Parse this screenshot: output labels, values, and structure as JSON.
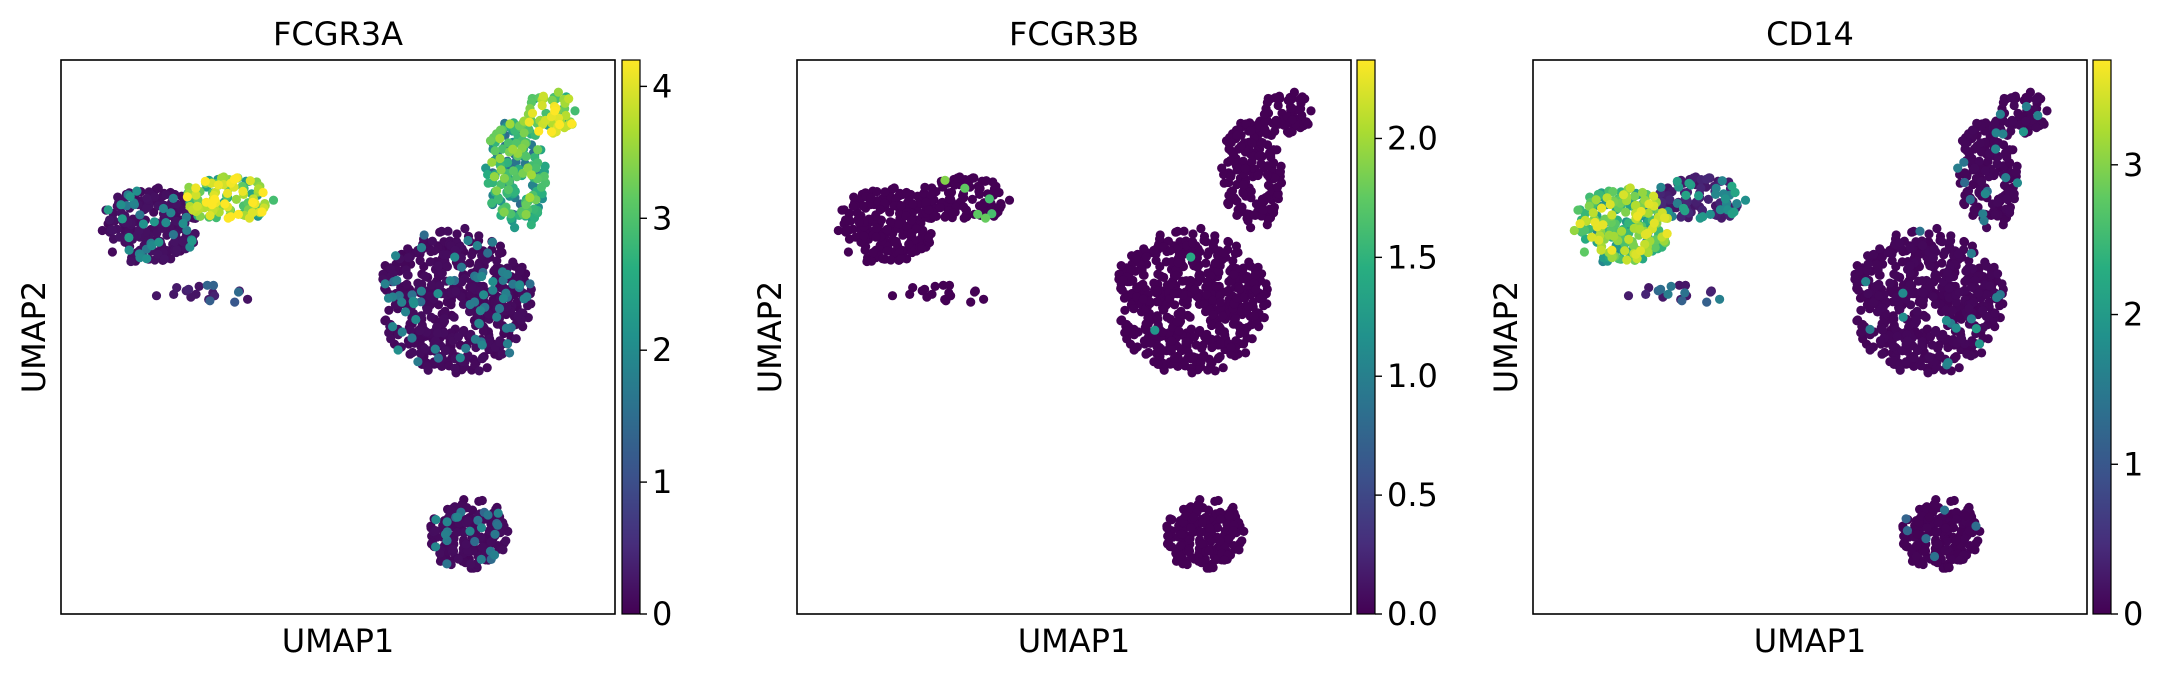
{
  "chart_data": [
    {
      "type": "scatter",
      "title": "FCGR3A",
      "xlabel": "UMAP1",
      "ylabel": "UMAP2",
      "colorbar": {
        "min": 0,
        "max": 4.2,
        "ticks": [
          0,
          1,
          2,
          3,
          4
        ],
        "tick_labels": [
          "0",
          "1",
          "2",
          "3",
          "4"
        ],
        "colormap": "viridis"
      },
      "grid": false,
      "legend": "none",
      "clusters": [
        {
          "name": "",
          "center": [
            -4.6,
            3.6
          ],
          "size": [
            1.7,
            1.4
          ],
          "n": 230,
          "expr_mean": 0.15,
          "expr_high_frac": 0.14,
          "expr_high": 2.3
        },
        {
          "name": "",
          "center": [
            -2.1,
            4.5
          ],
          "size": [
            1.6,
            0.8
          ],
          "n": 110,
          "expr_mean": 3.3,
          "expr_high_frac": 0.35,
          "expr_high": 4.1
        },
        {
          "name": "",
          "center": [
            -2.7,
            1.4
          ],
          "size": [
            1.9,
            0.35
          ],
          "n": 18,
          "expr_mean": 0.3,
          "expr_high_frac": 0.2,
          "expr_high": 1.6
        },
        {
          "name": "",
          "center": [
            5.0,
            1.2
          ],
          "size": [
            2.7,
            2.6
          ],
          "n": 560,
          "expr_mean": 0.1,
          "expr_high_frac": 0.1,
          "expr_high": 2.1
        },
        {
          "name": "",
          "center": [
            6.9,
            5.3
          ],
          "size": [
            1.1,
            2.0
          ],
          "n": 170,
          "expr_mean": 2.2,
          "expr_high_frac": 0.45,
          "expr_high": 3.6
        },
        {
          "name": "",
          "center": [
            8.0,
            7.3
          ],
          "size": [
            0.9,
            0.8
          ],
          "n": 60,
          "expr_mean": 3.5,
          "expr_high_frac": 0.5,
          "expr_high": 4.1
        },
        {
          "name": "",
          "center": [
            5.4,
            -6.4
          ],
          "size": [
            1.4,
            1.3
          ],
          "n": 190,
          "expr_mean": 0.1,
          "expr_high_frac": 0.12,
          "expr_high": 2.0
        }
      ]
    },
    {
      "type": "scatter",
      "title": "FCGR3B",
      "xlabel": "UMAP1",
      "ylabel": "UMAP2",
      "colorbar": {
        "min": 0,
        "max": 2.33,
        "ticks": [
          0.0,
          0.5,
          1.0,
          1.5,
          2.0
        ],
        "tick_labels": [
          "0.0",
          "0.5",
          "1.0",
          "1.5",
          "2.0"
        ],
        "colormap": "viridis"
      },
      "grid": false,
      "legend": "none",
      "clusters": [
        {
          "name": "",
          "center": [
            -4.6,
            3.6
          ],
          "size": [
            1.7,
            1.4
          ],
          "n": 230,
          "expr_mean": 0.0,
          "expr_high_frac": 0.0,
          "expr_high": 0.0
        },
        {
          "name": "",
          "center": [
            -2.1,
            4.5
          ],
          "size": [
            1.6,
            0.8
          ],
          "n": 110,
          "expr_mean": 0.0,
          "expr_high_frac": 0.05,
          "expr_high": 1.9
        },
        {
          "name": "",
          "center": [
            -2.7,
            1.4
          ],
          "size": [
            1.9,
            0.35
          ],
          "n": 18,
          "expr_mean": 0.0,
          "expr_high_frac": 0.0,
          "expr_high": 0.0
        },
        {
          "name": "",
          "center": [
            5.0,
            1.2
          ],
          "size": [
            2.7,
            2.6
          ],
          "n": 560,
          "expr_mean": 0.0,
          "expr_high_frac": 0.004,
          "expr_high": 1.4
        },
        {
          "name": "",
          "center": [
            6.9,
            5.3
          ],
          "size": [
            1.1,
            2.0
          ],
          "n": 170,
          "expr_mean": 0.0,
          "expr_high_frac": 0.0,
          "expr_high": 0.0
        },
        {
          "name": "",
          "center": [
            8.0,
            7.3
          ],
          "size": [
            0.9,
            0.8
          ],
          "n": 60,
          "expr_mean": 0.0,
          "expr_high_frac": 0.0,
          "expr_high": 0.0
        },
        {
          "name": "",
          "center": [
            5.4,
            -6.4
          ],
          "size": [
            1.4,
            1.3
          ],
          "n": 190,
          "expr_mean": 0.0,
          "expr_high_frac": 0.0,
          "expr_high": 0.0
        }
      ]
    },
    {
      "type": "scatter",
      "title": "CD14",
      "xlabel": "UMAP1",
      "ylabel": "UMAP2",
      "colorbar": {
        "min": 0,
        "max": 3.7,
        "ticks": [
          0,
          1,
          2,
          3
        ],
        "tick_labels": [
          "0",
          "1",
          "2",
          "3"
        ],
        "colormap": "viridis"
      },
      "grid": false,
      "legend": "none",
      "clusters": [
        {
          "name": "",
          "center": [
            -4.6,
            3.6
          ],
          "size": [
            1.7,
            1.4
          ],
          "n": 230,
          "expr_mean": 2.6,
          "expr_high_frac": 0.35,
          "expr_high": 3.4
        },
        {
          "name": "",
          "center": [
            -2.1,
            4.5
          ],
          "size": [
            1.6,
            0.8
          ],
          "n": 110,
          "expr_mean": 0.3,
          "expr_high_frac": 0.25,
          "expr_high": 2.2
        },
        {
          "name": "",
          "center": [
            -2.7,
            1.4
          ],
          "size": [
            1.9,
            0.35
          ],
          "n": 18,
          "expr_mean": 0.3,
          "expr_high_frac": 0.2,
          "expr_high": 1.6
        },
        {
          "name": "",
          "center": [
            5.0,
            1.2
          ],
          "size": [
            2.7,
            2.6
          ],
          "n": 560,
          "expr_mean": 0.05,
          "expr_high_frac": 0.06,
          "expr_high": 2.0
        },
        {
          "name": "",
          "center": [
            6.9,
            5.3
          ],
          "size": [
            1.1,
            2.0
          ],
          "n": 170,
          "expr_mean": 0.05,
          "expr_high_frac": 0.05,
          "expr_high": 1.8
        },
        {
          "name": "",
          "center": [
            8.0,
            7.3
          ],
          "size": [
            0.9,
            0.8
          ],
          "n": 60,
          "expr_mean": 0.05,
          "expr_high_frac": 0.05,
          "expr_high": 2.0
        },
        {
          "name": "",
          "center": [
            5.4,
            -6.4
          ],
          "size": [
            1.4,
            1.3
          ],
          "n": 190,
          "expr_mean": 0.02,
          "expr_high_frac": 0.03,
          "expr_high": 1.5
        }
      ]
    }
  ]
}
